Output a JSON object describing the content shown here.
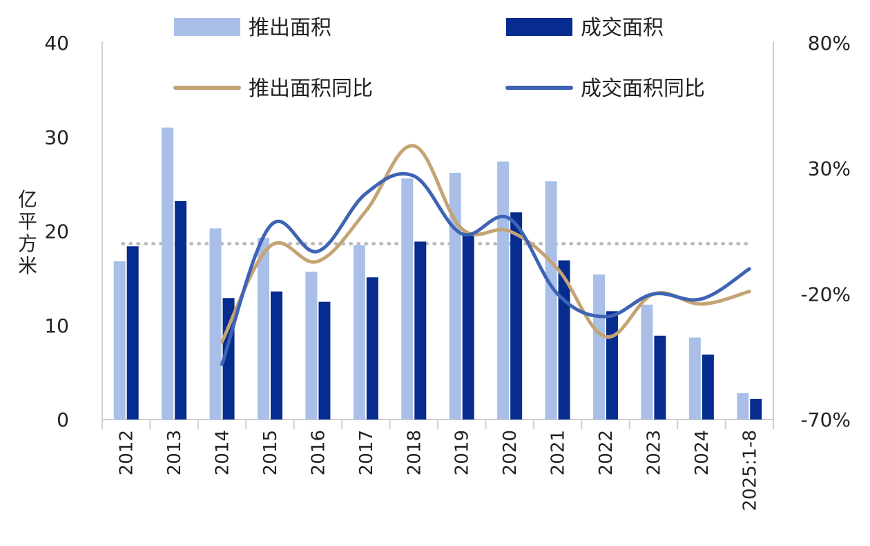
{
  "chart_data": {
    "type": "bar+line",
    "categories": [
      "2012",
      "2013",
      "2014",
      "2015",
      "2016",
      "2017",
      "2018",
      "2019",
      "2020",
      "2021",
      "2022",
      "2023",
      "2024",
      "2025:1-8"
    ],
    "ylabel": "亿平方米",
    "ylim": [
      0,
      40
    ],
    "yticks": [
      0,
      10,
      20,
      30,
      40
    ],
    "y2lim": [
      -70,
      80
    ],
    "y2ticks": [
      "-70%",
      "-20%",
      "30%",
      "80%"
    ],
    "y2tick_values": [
      -70,
      -20,
      30,
      80
    ],
    "reference_line": {
      "axis": "y2",
      "value": 0,
      "style": "dotted",
      "color": "#BBBBBB"
    },
    "legend_position": "top",
    "series": [
      {
        "name": "推出面积",
        "type": "bar",
        "axis": "y",
        "color": "#A9BFE8",
        "values": [
          16.8,
          31.0,
          20.3,
          19.3,
          15.7,
          18.5,
          25.6,
          26.2,
          27.4,
          25.3,
          15.4,
          12.2,
          8.7,
          2.8
        ]
      },
      {
        "name": "成交面积",
        "type": "bar",
        "axis": "y",
        "color": "#052C8E",
        "values": [
          18.4,
          23.2,
          12.9,
          13.6,
          12.5,
          15.1,
          18.9,
          19.5,
          22.0,
          16.9,
          11.5,
          8.9,
          6.9,
          2.2
        ]
      },
      {
        "name": "推出面积同比",
        "type": "line",
        "axis": "y2",
        "color": "#C4A473",
        "values": [
          null,
          null,
          -39.0,
          -1.0,
          -7.0,
          13.0,
          39.0,
          6.0,
          5.0,
          -10.0,
          -37.0,
          -20.0,
          -24.0,
          -19.0
        ]
      },
      {
        "name": "成交面积同比",
        "type": "line",
        "axis": "y2",
        "color": "#3E63B4",
        "values": [
          null,
          null,
          -48.0,
          7.0,
          -3.0,
          20.0,
          27.0,
          4.0,
          10.0,
          -20.0,
          -29.0,
          -20.0,
          -22.0,
          -10.0
        ]
      }
    ]
  }
}
